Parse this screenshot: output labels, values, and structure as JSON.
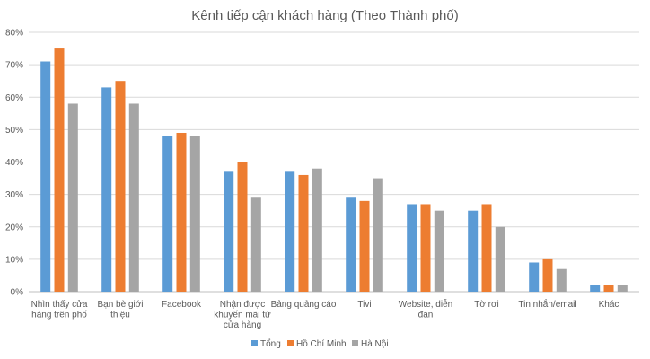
{
  "chart_data": {
    "type": "bar",
    "title": "Kênh tiếp cận khách hàng (Theo Thành phố)",
    "xlabel": "",
    "ylabel": "",
    "ylim": [
      0,
      80
    ],
    "yticks": [
      "0%",
      "10%",
      "20%",
      "30%",
      "40%",
      "50%",
      "60%",
      "70%",
      "80%"
    ],
    "categories": [
      [
        "Nhìn thấy cửa",
        "hàng trên phố"
      ],
      [
        "Bạn bè giới",
        "thiệu"
      ],
      [
        "Facebook"
      ],
      [
        "Nhận được",
        "khuyến mãi từ",
        "cửa hàng"
      ],
      [
        "Bảng quảng cáo"
      ],
      [
        "Tivi"
      ],
      [
        "Website, diễn",
        "đàn"
      ],
      [
        "Tờ rơi"
      ],
      [
        "Tin nhắn/email"
      ],
      [
        "Khác"
      ]
    ],
    "series": [
      {
        "name": "Tổng",
        "color": "#5b9bd5",
        "values": [
          71,
          63,
          48,
          37,
          37,
          29,
          27,
          25,
          9,
          2
        ]
      },
      {
        "name": "Hồ Chí Minh",
        "color": "#ed7d31",
        "values": [
          75,
          65,
          49,
          40,
          36,
          28,
          27,
          27,
          10,
          2
        ]
      },
      {
        "name": "Hà Nội",
        "color": "#a5a5a5",
        "values": [
          58,
          58,
          48,
          29,
          38,
          35,
          25,
          20,
          7,
          2
        ]
      }
    ],
    "grid": true,
    "legend": "bottom",
    "gridColor": "#d9d9d9",
    "axisColor": "#bfbfbf"
  }
}
